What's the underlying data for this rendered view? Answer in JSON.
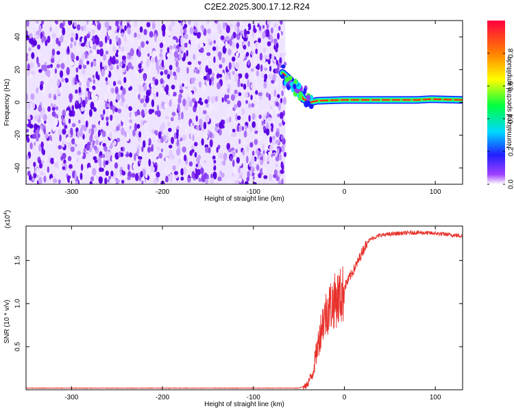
{
  "title": "C2E2.2025.300.17.12.R24",
  "chart_data": [
    {
      "type": "heatmap",
      "xlabel": "Height of straight line (km)",
      "ylabel": "Frequency (Hz)",
      "xlim": [
        -350,
        130
      ],
      "ylim": [
        -50,
        50
      ],
      "xticks": [
        -300,
        -200,
        -100,
        0,
        100
      ],
      "yticks": [
        -40,
        -20,
        0,
        20,
        40
      ],
      "colorbar": {
        "label": "Normalized spectral amplitude",
        "range": [
          0.0,
          1.0
        ],
        "ticks": [
          0.0,
          0.2,
          0.4,
          0.6,
          0.8
        ],
        "colors": [
          "#ffffff",
          "#a040ff",
          "#2020ff",
          "#00d8ff",
          "#00ff40",
          "#ffff00",
          "#ff8000",
          "#ff0040"
        ]
      },
      "features": {
        "noise_region_x": [
          -350,
          -65
        ],
        "signal_line": [
          {
            "x": -68,
            "y": 18
          },
          {
            "x": -60,
            "y": 14
          },
          {
            "x": -52,
            "y": 8
          },
          {
            "x": -45,
            "y": 2
          },
          {
            "x": -38,
            "y": 0
          },
          {
            "x": -30,
            "y": 1
          },
          {
            "x": 0,
            "y": 1.5
          },
          {
            "x": 80,
            "y": 1.5
          },
          {
            "x": 95,
            "y": 2
          },
          {
            "x": 130,
            "y": 1.5
          }
        ]
      }
    },
    {
      "type": "line",
      "xlabel": "Height of straight line (km)",
      "ylabel": "SNR (10 * v/v)",
      "yscale_label": "(x10^4)",
      "xlim": [
        -350,
        130
      ],
      "ylim": [
        0,
        1.9
      ],
      "xticks": [
        -300,
        -200,
        -100,
        0,
        100
      ],
      "yticks": [
        0.5,
        1.0,
        1.5
      ],
      "series": [
        {
          "color": "#e8302a",
          "points": [
            [
              -350,
              0.02
            ],
            [
              -50,
              0.02
            ],
            [
              -42,
              0.05
            ],
            [
              -35,
              0.2
            ],
            [
              -30,
              0.5
            ],
            [
              -25,
              0.8
            ],
            [
              -20,
              0.95
            ],
            [
              -15,
              1.05
            ],
            [
              -10,
              1.1
            ],
            [
              -5,
              1.15
            ],
            [
              0,
              1.2
            ],
            [
              5,
              1.3
            ],
            [
              10,
              1.4
            ],
            [
              15,
              1.5
            ],
            [
              20,
              1.62
            ],
            [
              25,
              1.72
            ],
            [
              30,
              1.76
            ],
            [
              40,
              1.8
            ],
            [
              60,
              1.82
            ],
            [
              80,
              1.83
            ],
            [
              100,
              1.82
            ],
            [
              120,
              1.8
            ],
            [
              130,
              1.79
            ]
          ]
        }
      ]
    }
  ]
}
